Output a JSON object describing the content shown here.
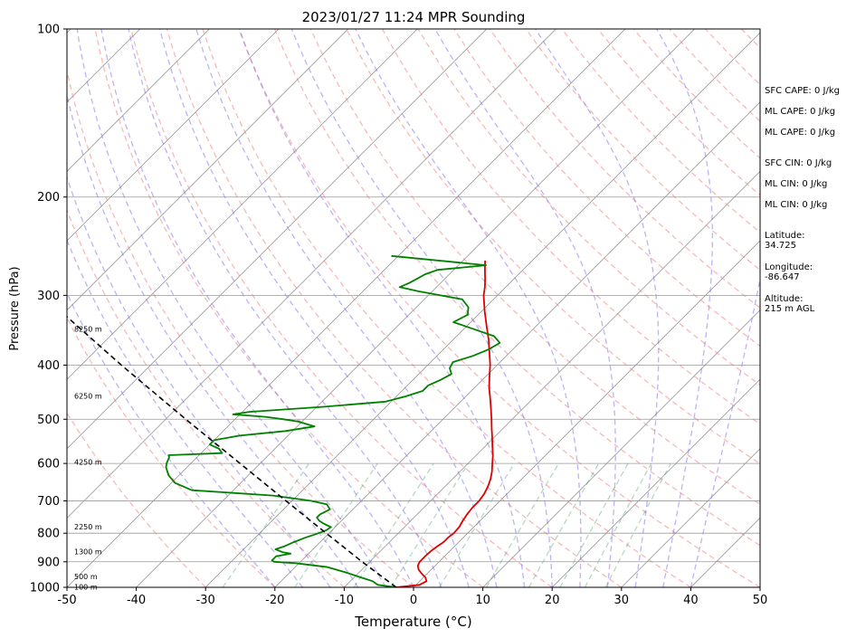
{
  "chart_data": {
    "type": "line",
    "title": "2023/01/27 11:24 MPR Sounding",
    "xlabel": "Temperature (°C)",
    "ylabel": "Pressure (hPa)",
    "xlim": [
      -50,
      50
    ],
    "ylim": [
      1000,
      100
    ],
    "y_scale": "log",
    "skew": true,
    "x_ticks": [
      -50,
      -40,
      -30,
      -20,
      -10,
      0,
      10,
      20,
      30,
      40,
      50
    ],
    "y_ticks": [
      1000,
      900,
      800,
      700,
      600,
      500,
      400,
      300,
      200,
      100
    ],
    "y_tick_labels": [
      "1000",
      "900",
      "800",
      "700",
      "600",
      "500",
      "400",
      "300",
      "200",
      "100"
    ],
    "grid": true,
    "background_lines": {
      "isotherms": "gray",
      "dry_adiabats": "red dashed",
      "moist_adiabats": "blue dashed",
      "mixing_ratio": "green dashed"
    },
    "series": [
      {
        "role": "temperature",
        "color": "#e00000",
        "points": [
          [
            1000,
            -2.5
          ],
          [
            990,
            0.5
          ],
          [
            975,
            1.0
          ],
          [
            960,
            0.3
          ],
          [
            945,
            -0.8
          ],
          [
            930,
            -1.8
          ],
          [
            915,
            -2.5
          ],
          [
            900,
            -2.8
          ],
          [
            880,
            -2.8
          ],
          [
            860,
            -2.7
          ],
          [
            845,
            -2.5
          ],
          [
            830,
            -2.2
          ],
          [
            815,
            -2.2
          ],
          [
            800,
            -2.0
          ],
          [
            780,
            -2.1
          ],
          [
            760,
            -2.5
          ],
          [
            740,
            -2.8
          ],
          [
            720,
            -3.0
          ],
          [
            700,
            -3.0
          ],
          [
            680,
            -3.3
          ],
          [
            660,
            -3.8
          ],
          [
            640,
            -4.5
          ],
          [
            620,
            -5.4
          ],
          [
            600,
            -6.5
          ],
          [
            580,
            -7.6
          ],
          [
            560,
            -8.9
          ],
          [
            540,
            -10.2
          ],
          [
            520,
            -11.6
          ],
          [
            500,
            -13.0
          ],
          [
            480,
            -14.5
          ],
          [
            460,
            -16.1
          ],
          [
            440,
            -17.8
          ],
          [
            420,
            -19.4
          ],
          [
            400,
            -21.0
          ],
          [
            380,
            -22.9
          ],
          [
            360,
            -24.9
          ],
          [
            340,
            -27.2
          ],
          [
            320,
            -29.6
          ],
          [
            300,
            -32.0
          ],
          [
            290,
            -33.0
          ],
          [
            280,
            -34.2
          ],
          [
            270,
            -35.5
          ],
          [
            260,
            -36.8
          ]
        ]
      },
      {
        "role": "dewpoint",
        "color": "#008000",
        "points": [
          [
            1000,
            -2.5
          ],
          [
            990,
            -5.5
          ],
          [
            975,
            -6.8
          ],
          [
            960,
            -9.0
          ],
          [
            940,
            -12.0
          ],
          [
            920,
            -15.3
          ],
          [
            905,
            -20.5
          ],
          [
            900,
            -23.8
          ],
          [
            895,
            -24.3
          ],
          [
            880,
            -24.3
          ],
          [
            870,
            -22.6
          ],
          [
            865,
            -24.0
          ],
          [
            855,
            -25.4
          ],
          [
            845,
            -24.6
          ],
          [
            830,
            -23.8
          ],
          [
            815,
            -22.8
          ],
          [
            800,
            -21.5
          ],
          [
            790,
            -20.8
          ],
          [
            780,
            -20.6
          ],
          [
            770,
            -22.0
          ],
          [
            760,
            -23.2
          ],
          [
            750,
            -24.0
          ],
          [
            740,
            -24.0
          ],
          [
            725,
            -23.3
          ],
          [
            710,
            -24.5
          ],
          [
            700,
            -27.3
          ],
          [
            685,
            -33.5
          ],
          [
            670,
            -46.0
          ],
          [
            650,
            -49.5
          ],
          [
            630,
            -51.5
          ],
          [
            610,
            -53.0
          ],
          [
            600,
            -53.5
          ],
          [
            585,
            -54.0
          ],
          [
            580,
            -54.4
          ],
          [
            575,
            -47.0
          ],
          [
            565,
            -48.0
          ],
          [
            555,
            -50.0
          ],
          [
            545,
            -50.0
          ],
          [
            535,
            -47.0
          ],
          [
            525,
            -41.0
          ],
          [
            515,
            -37.5
          ],
          [
            505,
            -40.5
          ],
          [
            500,
            -43.0
          ],
          [
            495,
            -46.0
          ],
          [
            490,
            -51.0
          ],
          [
            485,
            -49.0
          ],
          [
            475,
            -39.0
          ],
          [
            465,
            -30.8
          ],
          [
            455,
            -28.7
          ],
          [
            445,
            -27.0
          ],
          [
            435,
            -27.0
          ],
          [
            425,
            -26.0
          ],
          [
            415,
            -25.3
          ],
          [
            405,
            -26.4
          ],
          [
            395,
            -26.8
          ],
          [
            385,
            -24.8
          ],
          [
            375,
            -23.5
          ],
          [
            365,
            -22.8
          ],
          [
            355,
            -24.6
          ],
          [
            345,
            -28.5
          ],
          [
            335,
            -32.5
          ],
          [
            325,
            -31.5
          ],
          [
            315,
            -32.5
          ],
          [
            305,
            -34.5
          ],
          [
            295,
            -42.0
          ],
          [
            290,
            -45.3
          ],
          [
            285,
            -44.5
          ],
          [
            280,
            -44.0
          ],
          [
            275,
            -43.5
          ],
          [
            270,
            -42.3
          ],
          [
            265,
            -36.0
          ],
          [
            255,
            -51.0
          ]
        ]
      },
      {
        "role": "parcel",
        "color": "#000000",
        "dashed": true,
        "points": [
          [
            1000,
            -2.5
          ],
          [
            900,
            -11.1
          ],
          [
            800,
            -20.4
          ],
          [
            700,
            -30.9
          ],
          [
            600,
            -42.9
          ],
          [
            500,
            -57.1
          ],
          [
            400,
            -74.2
          ],
          [
            300,
            -95.6
          ]
        ]
      }
    ],
    "height_labels": [
      {
        "p": 1000,
        "text": "100 m"
      },
      {
        "p": 958,
        "text": "500 m"
      },
      {
        "p": 865,
        "text": "1300 m"
      },
      {
        "p": 780,
        "text": "2250 m"
      },
      {
        "p": 597,
        "text": "4250 m"
      },
      {
        "p": 455,
        "text": "6250 m"
      },
      {
        "p": 345,
        "text": "8250 m"
      }
    ]
  },
  "side_panel": {
    "sfc_cape": "SFC CAPE: 0 J/kg",
    "ml_cape": "ML CAPE: 0 J/kg",
    "ml_cape_2": "ML CAPE: 0 J/kg",
    "sfc_cin": "SFC CIN: 0 J/kg",
    "ml_cin": "ML CIN: 0 J/kg",
    "ml_cin_2": "ML CIN: 0 J/kg",
    "latitude_label": "Latitude:",
    "latitude_value": "34.725",
    "longitude_label": "Longitude:",
    "longitude_value": "-86.647",
    "altitude_label": "Altitude:",
    "altitude_value": "215 m AGL"
  }
}
